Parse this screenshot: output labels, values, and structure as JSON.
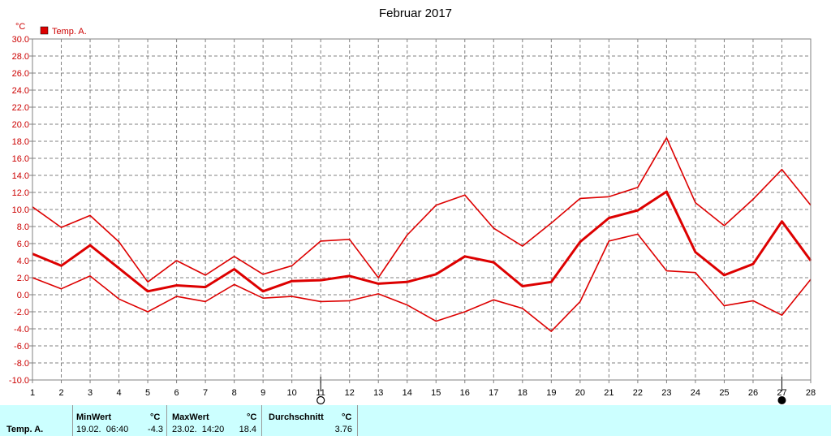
{
  "chart_data": {
    "type": "line",
    "title": "Februar 2017",
    "unit_label": "°C",
    "legend": [
      {
        "name": "Temp. A.",
        "color": "#dd0000"
      }
    ],
    "ylim": [
      -10,
      30
    ],
    "yticks": [
      "30.0",
      "28.0",
      "26.0",
      "24.0",
      "22.0",
      "20.0",
      "18.0",
      "16.0",
      "14.0",
      "12.0",
      "10.0",
      "8.0",
      "6.0",
      "4.0",
      "2.0",
      "0.0",
      "-2.0",
      "-4.0",
      "-6.0",
      "-8.0",
      "-10.0"
    ],
    "x": [
      1,
      2,
      3,
      4,
      5,
      6,
      7,
      8,
      9,
      10,
      11,
      12,
      13,
      14,
      15,
      16,
      17,
      18,
      19,
      20,
      21,
      22,
      23,
      24,
      25,
      26,
      27,
      28
    ],
    "xticks": [
      "1",
      "2",
      "3",
      "4",
      "5",
      "6",
      "7",
      "8",
      "9",
      "10",
      "11",
      "12",
      "13",
      "14",
      "15",
      "16",
      "17",
      "18",
      "19",
      "20",
      "21",
      "22",
      "23",
      "24",
      "25",
      "26",
      "27",
      "28"
    ],
    "grid": true,
    "series": [
      {
        "role": "max",
        "values": [
          10.3,
          7.9,
          9.3,
          6.2,
          1.5,
          4.0,
          2.3,
          4.5,
          2.4,
          3.4,
          6.3,
          6.5,
          2.0,
          7.0,
          10.5,
          11.7,
          7.8,
          5.7,
          8.4,
          11.3,
          11.5,
          12.6,
          18.4,
          10.8,
          8.1,
          11.2,
          14.7,
          10.5
        ]
      },
      {
        "role": "avg",
        "values": [
          4.8,
          3.4,
          5.8,
          3.1,
          0.4,
          1.1,
          0.9,
          3.0,
          0.4,
          1.6,
          1.7,
          2.2,
          1.3,
          1.5,
          2.4,
          4.5,
          3.8,
          1.0,
          1.5,
          6.2,
          9.0,
          9.9,
          12.1,
          5.0,
          2.3,
          3.6,
          8.6,
          4.0
        ]
      },
      {
        "role": "min",
        "values": [
          2.0,
          0.7,
          2.2,
          -0.5,
          -2.0,
          -0.2,
          -0.8,
          1.2,
          -0.4,
          -0.2,
          -0.8,
          -0.7,
          0.1,
          -1.2,
          -3.1,
          -2.0,
          -0.6,
          -1.6,
          -4.3,
          -0.8,
          6.3,
          7.1,
          2.8,
          2.6,
          -1.3,
          -0.7,
          -2.4,
          1.8
        ]
      }
    ],
    "moon_markers": [
      {
        "day": 11,
        "phase": "new-moon"
      },
      {
        "day": 27,
        "phase": "full-moon"
      }
    ]
  },
  "stats": {
    "row_label": "Temp. A.",
    "min": {
      "header": "MinWert",
      "unit": "°C",
      "when": "19.02.  06:40",
      "value": "-4.3"
    },
    "max": {
      "header": "MaxWert",
      "unit": "°C",
      "when": "23.02.  14:20",
      "value": "18.4"
    },
    "avg": {
      "header": "Durchschnitt",
      "unit": "°C",
      "value": "3.76"
    },
    "colors": {
      "panel": "#ccffff",
      "line": "#dd0000"
    }
  }
}
